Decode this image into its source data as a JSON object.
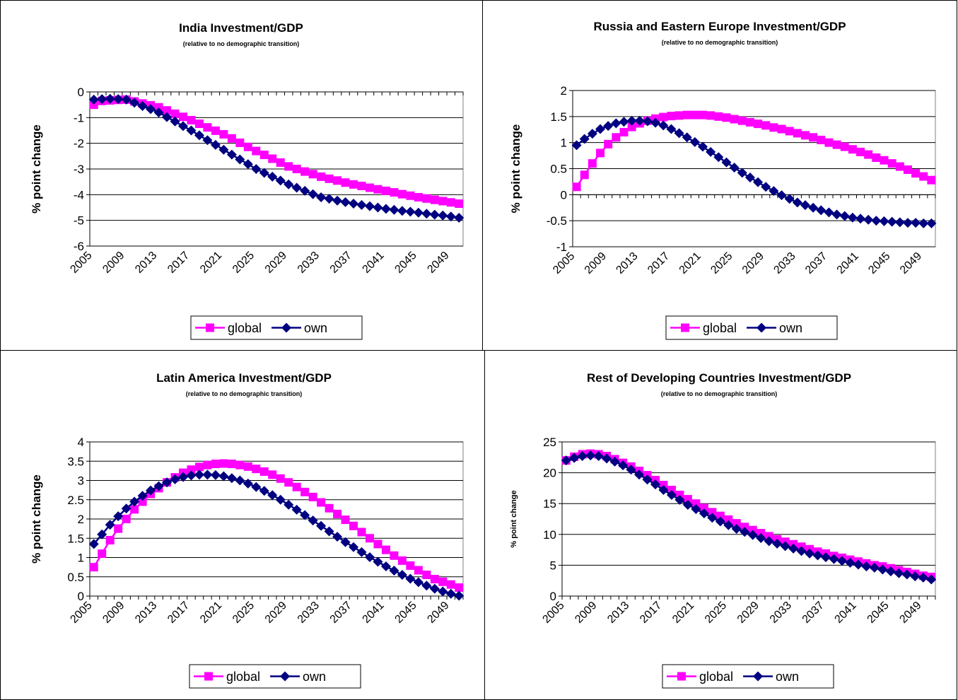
{
  "chart_data": [
    {
      "type": "line",
      "title": "India Investment/GDP",
      "subtitle": "(relative to no demographic transition)",
      "y_label": "%  point change",
      "categories": [
        "2005",
        null,
        null,
        null,
        "2009",
        null,
        null,
        null,
        "2013",
        null,
        null,
        null,
        "2017",
        null,
        null,
        null,
        "2021",
        null,
        null,
        null,
        "2025",
        null,
        null,
        null,
        "2029",
        null,
        null,
        null,
        "2033",
        null,
        null,
        null,
        "2037",
        null,
        null,
        null,
        "2041",
        null,
        null,
        null,
        "2045",
        null,
        null,
        null,
        "2049",
        null
      ],
      "series": [
        {
          "name": "global",
          "color": "#ff00ff",
          "marker": "square",
          "values": [
            -0.5,
            -0.35,
            -0.33,
            -0.31,
            -0.3,
            -0.37,
            -0.45,
            -0.52,
            -0.6,
            -0.72,
            -0.85,
            -0.97,
            -1.1,
            -1.24,
            -1.38,
            -1.51,
            -1.65,
            -1.81,
            -1.98,
            -2.14,
            -2.3,
            -2.45,
            -2.6,
            -2.75,
            -2.9,
            -3.0,
            -3.1,
            -3.2,
            -3.3,
            -3.38,
            -3.45,
            -3.53,
            -3.6,
            -3.66,
            -3.73,
            -3.79,
            -3.85,
            -3.91,
            -3.98,
            -4.04,
            -4.1,
            -4.15,
            -4.2,
            -4.25,
            -4.3,
            -4.35
          ]
        },
        {
          "name": "own",
          "color": "#000080",
          "marker": "diamond",
          "values": [
            -0.3,
            -0.28,
            -0.27,
            -0.28,
            -0.3,
            -0.42,
            -0.55,
            -0.67,
            -0.8,
            -0.98,
            -1.15,
            -1.33,
            -1.5,
            -1.69,
            -1.88,
            -2.06,
            -2.25,
            -2.44,
            -2.63,
            -2.81,
            -3.0,
            -3.15,
            -3.3,
            -3.45,
            -3.6,
            -3.73,
            -3.85,
            -3.98,
            -4.1,
            -4.16,
            -4.23,
            -4.29,
            -4.35,
            -4.4,
            -4.45,
            -4.5,
            -4.55,
            -4.59,
            -4.63,
            -4.66,
            -4.7,
            -4.74,
            -4.78,
            -4.81,
            -4.85,
            -4.9
          ]
        }
      ],
      "ylim": [
        -6,
        0
      ],
      "yticks": [
        0,
        -1,
        -2,
        -3,
        -4,
        -5,
        -6
      ],
      "grid": true,
      "legend": "bottom"
    },
    {
      "type": "line",
      "title": "Russia and Eastern Europe Investment/GDP",
      "subtitle": "(relative to no demographic transition)",
      "y_label": "%  point change",
      "categories": [
        "2005",
        null,
        null,
        null,
        "2009",
        null,
        null,
        null,
        "2013",
        null,
        null,
        null,
        "2017",
        null,
        null,
        null,
        "2021",
        null,
        null,
        null,
        "2025",
        null,
        null,
        null,
        "2029",
        null,
        null,
        null,
        "2033",
        null,
        null,
        null,
        "2037",
        null,
        null,
        null,
        "2041",
        null,
        null,
        null,
        "2045",
        null,
        null,
        null,
        "2049",
        null
      ],
      "series": [
        {
          "name": "global",
          "color": "#ff00ff",
          "marker": "square",
          "values": [
            0.15,
            0.38,
            0.6,
            0.8,
            0.97,
            1.1,
            1.2,
            1.3,
            1.37,
            1.42,
            1.46,
            1.49,
            1.51,
            1.52,
            1.53,
            1.53,
            1.53,
            1.52,
            1.5,
            1.48,
            1.45,
            1.42,
            1.39,
            1.36,
            1.33,
            1.29,
            1.26,
            1.22,
            1.18,
            1.14,
            1.1,
            1.05,
            1.0,
            0.96,
            0.92,
            0.87,
            0.82,
            0.77,
            0.71,
            0.66,
            0.6,
            0.54,
            0.48,
            0.41,
            0.35,
            0.28
          ]
        },
        {
          "name": "own",
          "color": "#000080",
          "marker": "diamond",
          "values": [
            0.95,
            1.07,
            1.17,
            1.26,
            1.32,
            1.37,
            1.4,
            1.42,
            1.42,
            1.41,
            1.38,
            1.33,
            1.26,
            1.18,
            1.1,
            1.01,
            0.92,
            0.82,
            0.72,
            0.62,
            0.52,
            0.42,
            0.33,
            0.24,
            0.15,
            0.07,
            -0.01,
            -0.08,
            -0.15,
            -0.2,
            -0.25,
            -0.3,
            -0.34,
            -0.38,
            -0.41,
            -0.44,
            -0.46,
            -0.48,
            -0.5,
            -0.51,
            -0.52,
            -0.53,
            -0.54,
            -0.54,
            -0.55,
            -0.55
          ]
        }
      ],
      "ylim": [
        -1,
        2
      ],
      "yticks": [
        2,
        1.5,
        1,
        0.5,
        0,
        -0.5,
        -1
      ],
      "grid": true,
      "legend": "bottom"
    },
    {
      "type": "line",
      "title": "Latin America Investment/GDP",
      "subtitle": "(relative to no demographic transition)",
      "y_label": "%  point change",
      "categories": [
        "2005",
        null,
        null,
        null,
        "2009",
        null,
        null,
        null,
        "2013",
        null,
        null,
        null,
        "2017",
        null,
        null,
        null,
        "2021",
        null,
        null,
        null,
        "2025",
        null,
        null,
        null,
        "2029",
        null,
        null,
        null,
        "2033",
        null,
        null,
        null,
        "2037",
        null,
        null,
        null,
        "2041",
        null,
        null,
        null,
        "2045",
        null,
        null,
        null,
        "2049",
        null
      ],
      "series": [
        {
          "name": "global",
          "color": "#ff00ff",
          "marker": "square",
          "values": [
            0.75,
            1.1,
            1.45,
            1.75,
            2.0,
            2.25,
            2.45,
            2.65,
            2.8,
            2.95,
            3.08,
            3.2,
            3.28,
            3.35,
            3.4,
            3.43,
            3.44,
            3.43,
            3.4,
            3.36,
            3.3,
            3.23,
            3.15,
            3.05,
            2.95,
            2.83,
            2.7,
            2.57,
            2.43,
            2.28,
            2.13,
            1.98,
            1.82,
            1.66,
            1.5,
            1.35,
            1.2,
            1.05,
            0.92,
            0.79,
            0.67,
            0.55,
            0.44,
            0.37,
            0.3,
            0.22
          ]
        },
        {
          "name": "own",
          "color": "#000080",
          "marker": "diamond",
          "values": [
            1.35,
            1.6,
            1.85,
            2.07,
            2.27,
            2.45,
            2.6,
            2.74,
            2.85,
            2.95,
            3.03,
            3.09,
            3.13,
            3.15,
            3.15,
            3.14,
            3.11,
            3.06,
            3.0,
            2.92,
            2.83,
            2.73,
            2.62,
            2.5,
            2.37,
            2.24,
            2.1,
            1.96,
            1.82,
            1.68,
            1.54,
            1.4,
            1.27,
            1.14,
            1.01,
            0.89,
            0.77,
            0.66,
            0.55,
            0.45,
            0.36,
            0.27,
            0.19,
            0.12,
            0.06,
            0.01
          ]
        }
      ],
      "ylim": [
        0,
        4
      ],
      "yticks": [
        4,
        3.5,
        3,
        2.5,
        2,
        1.5,
        1,
        0.5,
        0
      ],
      "grid": true,
      "legend": "bottom"
    },
    {
      "type": "line",
      "title": "Rest of Developing Countries Investment/GDP",
      "subtitle": "(relative to no demographic transition)",
      "y_label": "% point change",
      "categories": [
        "2005",
        null,
        null,
        null,
        "2009",
        null,
        null,
        null,
        "2013",
        null,
        null,
        null,
        "2017",
        null,
        null,
        null,
        "2021",
        null,
        null,
        null,
        "2025",
        null,
        null,
        null,
        "2029",
        null,
        null,
        null,
        "2033",
        null,
        null,
        null,
        "2037",
        null,
        null,
        null,
        "2041",
        null,
        null,
        null,
        "2045",
        null,
        null,
        null,
        "2049",
        null
      ],
      "series": [
        {
          "name": "global",
          "color": "#ff00ff",
          "marker": "square",
          "values": [
            22.0,
            22.6,
            23.0,
            23.1,
            23.0,
            22.7,
            22.2,
            21.6,
            21.0,
            20.3,
            19.6,
            18.8,
            18.0,
            17.2,
            16.4,
            15.7,
            15.0,
            14.3,
            13.6,
            13.0,
            12.4,
            11.8,
            11.2,
            10.7,
            10.2,
            9.7,
            9.2,
            8.8,
            8.4,
            8.0,
            7.6,
            7.2,
            6.9,
            6.5,
            6.2,
            5.9,
            5.6,
            5.3,
            5.0,
            4.8,
            4.5,
            4.2,
            3.9,
            3.6,
            3.3,
            3.1
          ]
        },
        {
          "name": "own",
          "color": "#000080",
          "marker": "diamond",
          "values": [
            22.0,
            22.4,
            22.7,
            22.8,
            22.7,
            22.3,
            21.8,
            21.2,
            20.5,
            19.7,
            18.9,
            18.1,
            17.2,
            16.4,
            15.6,
            14.8,
            14.1,
            13.4,
            12.7,
            12.1,
            11.5,
            10.9,
            10.4,
            9.9,
            9.4,
            8.9,
            8.5,
            8.1,
            7.7,
            7.3,
            6.9,
            6.6,
            6.3,
            6.0,
            5.7,
            5.4,
            5.1,
            4.8,
            4.6,
            4.3,
            4.0,
            3.7,
            3.5,
            3.2,
            3.0,
            2.7
          ]
        }
      ],
      "ylim": [
        0,
        25
      ],
      "yticks": [
        25,
        20,
        15,
        10,
        5,
        0
      ],
      "grid": true,
      "legend": "bottom"
    }
  ]
}
